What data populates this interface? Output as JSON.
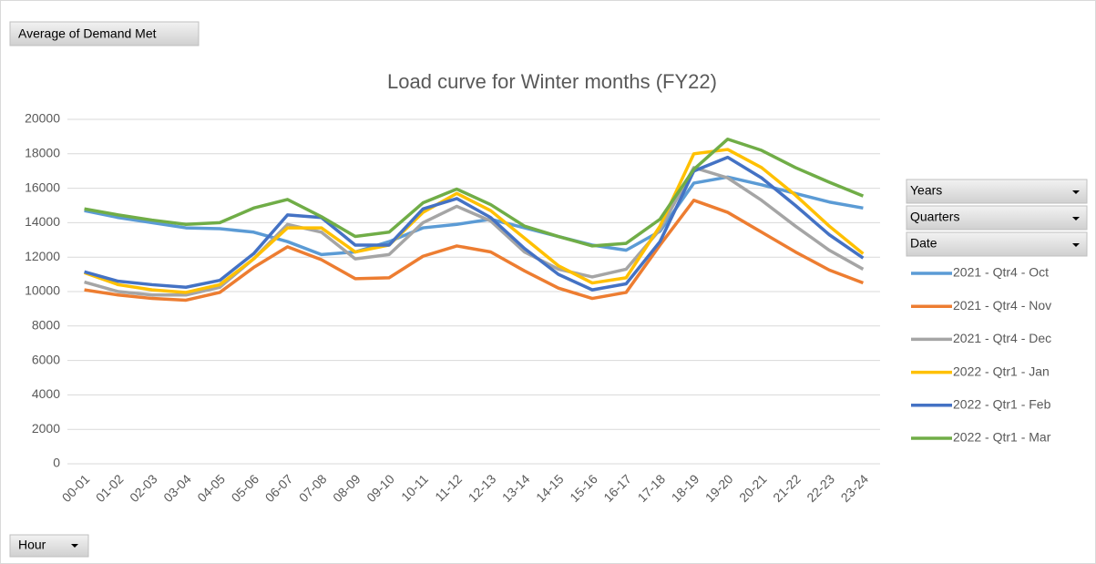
{
  "chart_data": {
    "type": "line",
    "title": "Load curve for Winter months (FY22)",
    "value_field": "Average of Demand Met",
    "filter_fields": [
      "Years",
      "Quarters",
      "Date"
    ],
    "axis_field": "Hour",
    "categories": [
      "00-01",
      "01-02",
      "02-03",
      "03-04",
      "04-05",
      "05-06",
      "06-07",
      "07-08",
      "08-09",
      "09-10",
      "10-11",
      "11-12",
      "12-13",
      "13-14",
      "14-15",
      "15-16",
      "16-17",
      "17-18",
      "18-19",
      "19-20",
      "20-21",
      "21-22",
      "22-23",
      "23-24"
    ],
    "series": [
      {
        "name": "2021 - Qtr4 - Oct",
        "color": "#5b9bd5",
        "values": [
          14700,
          14300,
          14000,
          13700,
          13650,
          13450,
          12900,
          12150,
          12300,
          12900,
          13700,
          13900,
          14200,
          13700,
          13200,
          12700,
          12400,
          13500,
          16300,
          16650,
          16200,
          15700,
          15200,
          14850
        ]
      },
      {
        "name": "2021 - Qtr4 - Nov",
        "color": "#ed7d31",
        "values": [
          10100,
          9800,
          9600,
          9500,
          9950,
          11400,
          12600,
          11850,
          10750,
          10800,
          12050,
          12650,
          12300,
          11200,
          10200,
          9600,
          9950,
          12700,
          15300,
          14600,
          13450,
          12300,
          11250,
          10500
        ]
      },
      {
        "name": "2021 - Qtr4 - Dec",
        "color": "#a5a5a5",
        "values": [
          10550,
          10000,
          9800,
          9800,
          10250,
          11900,
          13900,
          13450,
          11900,
          12150,
          14000,
          14950,
          14100,
          12300,
          11300,
          10850,
          11300,
          13600,
          17200,
          16600,
          15300,
          13800,
          12400,
          11300
        ]
      },
      {
        "name": "2022 - Qtr1 - Jan",
        "color": "#ffc000",
        "values": [
          11100,
          10400,
          10100,
          9950,
          10400,
          11900,
          13700,
          13700,
          12300,
          12700,
          14600,
          15700,
          14700,
          13100,
          11500,
          10500,
          10800,
          13800,
          18000,
          18250,
          17200,
          15600,
          13800,
          12200
        ]
      },
      {
        "name": "2022 - Qtr1 - Feb",
        "color": "#4472c4",
        "values": [
          11150,
          10600,
          10400,
          10250,
          10650,
          12200,
          14450,
          14300,
          12700,
          12700,
          14800,
          15400,
          14300,
          12500,
          11000,
          10100,
          10450,
          12900,
          17000,
          17800,
          16600,
          15000,
          13300,
          11950
        ]
      },
      {
        "name": "2022 - Qtr1 - Mar",
        "color": "#70ad47",
        "values": [
          14800,
          14450,
          14150,
          13900,
          14000,
          14850,
          15350,
          14350,
          13200,
          13450,
          15150,
          15950,
          15050,
          13800,
          13200,
          12650,
          12800,
          14200,
          17100,
          18850,
          18200,
          17200,
          16350,
          15550
        ]
      }
    ],
    "ylim": [
      0,
      20000
    ],
    "yticks": [
      0,
      2000,
      4000,
      6000,
      8000,
      10000,
      12000,
      14000,
      16000,
      18000,
      20000
    ],
    "grid": true,
    "legend": "right"
  }
}
